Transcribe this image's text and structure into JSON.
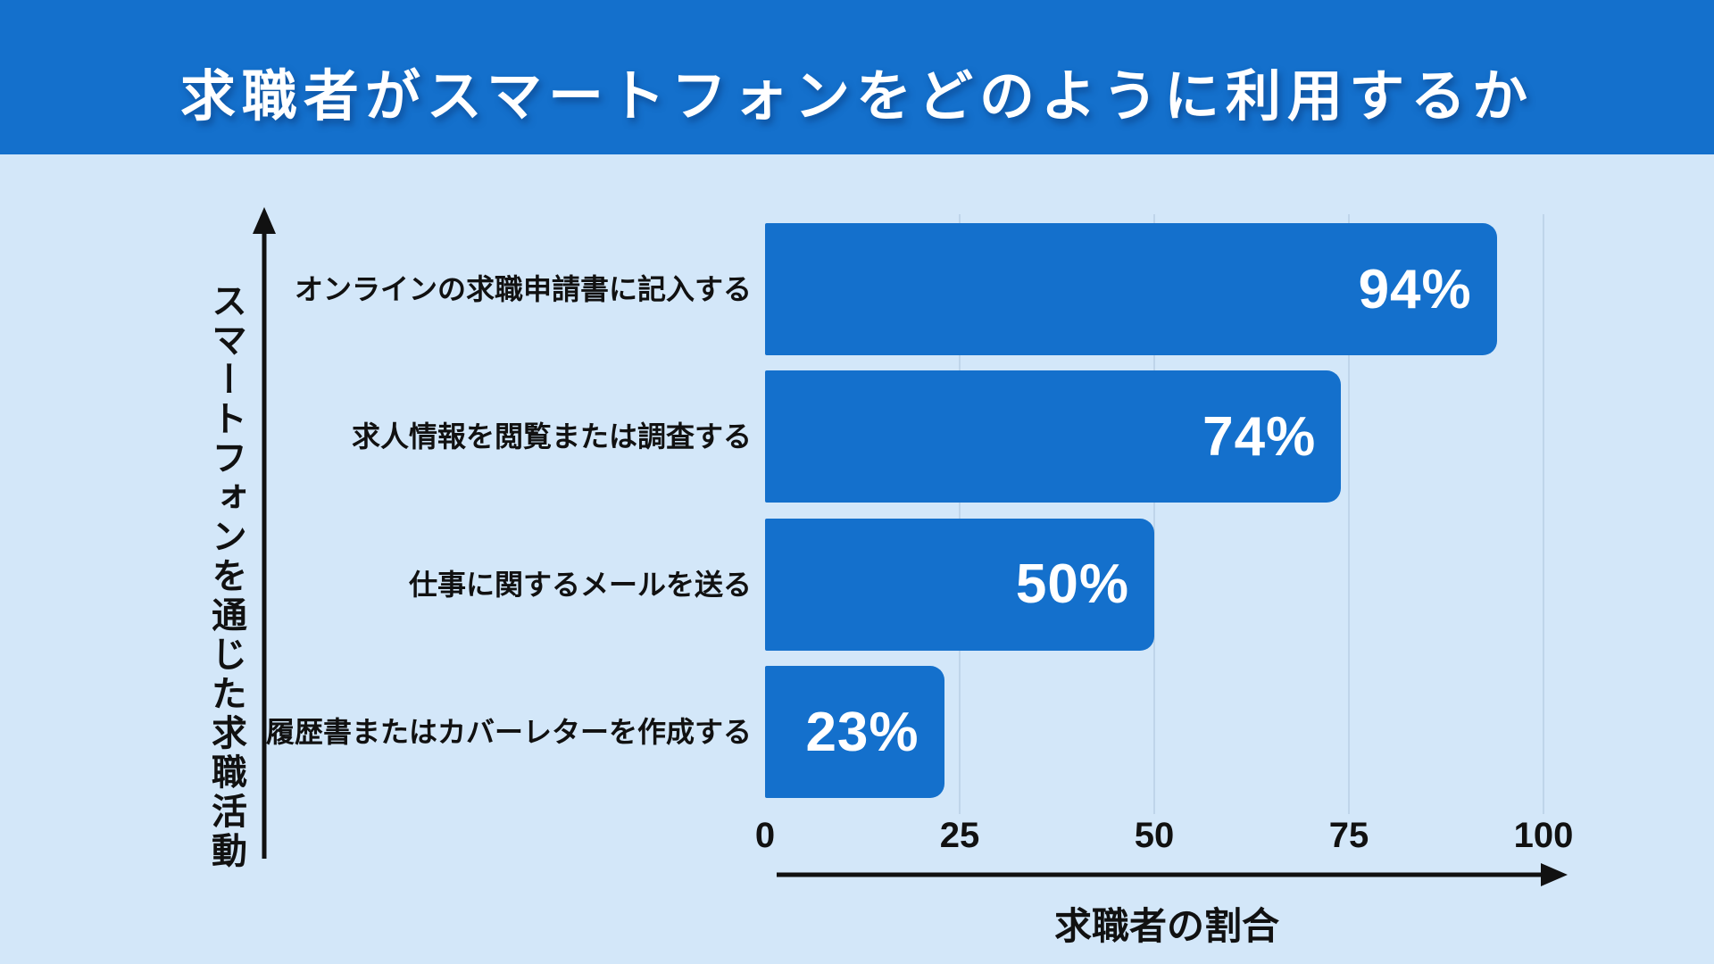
{
  "header": {
    "title": "求職者がスマートフォンをどのように利用するか"
  },
  "chart_data": {
    "type": "bar",
    "orientation": "horizontal",
    "title": "求職者がスマートフォンをどのように利用するか",
    "categories": [
      "オンラインの求職申請書に記入する",
      "求人情報を閲覧または調査する",
      "仕事に関するメールを送る",
      "履歴書またはカバーレターを作成する"
    ],
    "values": [
      94,
      74,
      50,
      23
    ],
    "value_labels": [
      "94%",
      "74%",
      "50%",
      "23%"
    ],
    "xlabel": "求職者の割合",
    "ylabel": "スマートフォンを通じた求職活動",
    "xlim": [
      0,
      100
    ],
    "xticks": [
      "0",
      "25",
      "50",
      "75",
      "100"
    ],
    "xtick_values": [
      0,
      25,
      50,
      75,
      100
    ],
    "grid": "vertical gridlines at ticks (no line at 0)",
    "legend": "none",
    "colors": {
      "accent": "#1470CC",
      "background": "#D3E7F9",
      "bar": "#1470CC",
      "gridline": "#BFD5EA",
      "text": "#111111",
      "value_label": "#FFFFFF",
      "title_text": "#FFFFFF"
    }
  }
}
